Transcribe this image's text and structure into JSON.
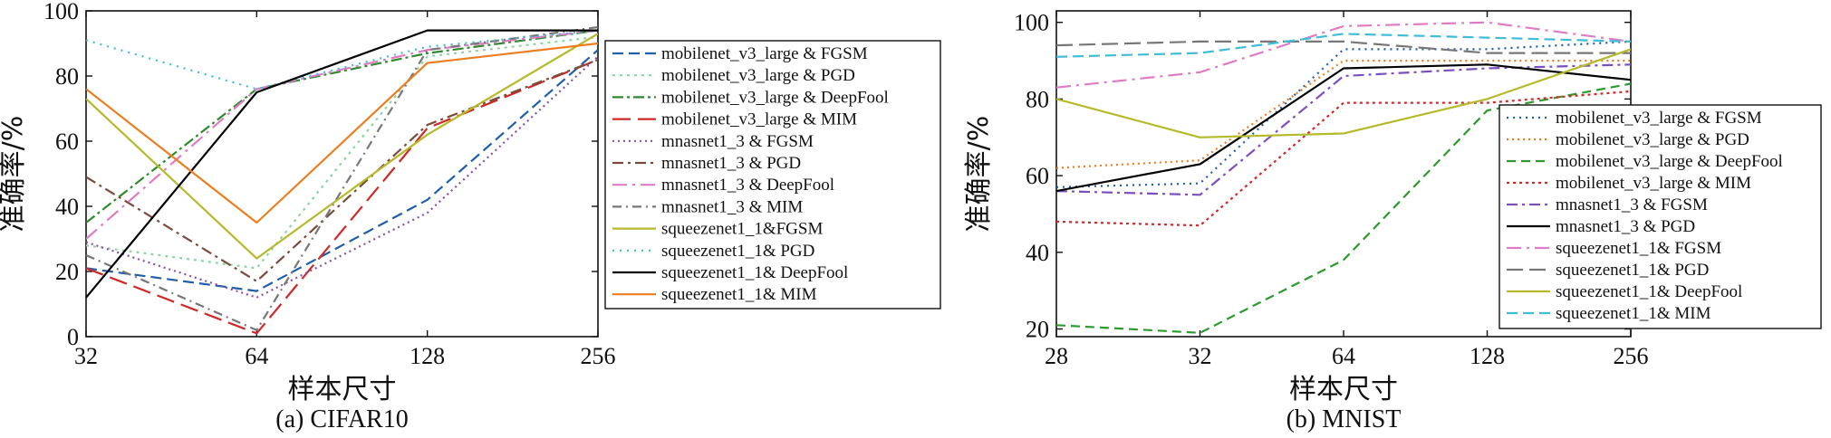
{
  "chart_data": [
    {
      "type": "line",
      "caption": "(a) CIFAR10",
      "xlabel": "样本尺寸",
      "ylabel": "准确率/%",
      "categories": [
        "32",
        "64",
        "128",
        "256"
      ],
      "yticks": [
        "0",
        "20",
        "40",
        "60",
        "80",
        "100"
      ],
      "ylim": [
        0,
        100
      ],
      "grid": false,
      "legend_position": "right",
      "series": [
        {
          "name": "mobilenet_v3_large & FGSM",
          "color": "#1f5fa8",
          "dash": "12 6",
          "values": [
            21,
            14,
            42,
            88
          ]
        },
        {
          "name": "mobilenet_v3_large & PGD",
          "color": "#8fd3a6",
          "dash": "3 5",
          "values": [
            28,
            21,
            86,
            92
          ]
        },
        {
          "name": "mobilenet_v3_large & DeepFool",
          "color": "#2d8a2d",
          "dash": "12 4 3 4",
          "values": [
            35,
            76,
            87,
            94
          ]
        },
        {
          "name": "mobilenet_v3_large & MIM",
          "color": "#d02828",
          "dash": "20 8",
          "values": [
            21,
            1,
            64,
            85
          ]
        },
        {
          "name": "mnasnet1_3 & FGSM",
          "color": "#8a4fa5",
          "dash": "2 4",
          "values": [
            29,
            12,
            38,
            86
          ]
        },
        {
          "name": "mnasnet1_3 & PGD",
          "color": "#7a4a3a",
          "dash": "12 5 3 5",
          "values": [
            49,
            17,
            65,
            85
          ]
        },
        {
          "name": "mnasnet1_3 & DeepFool",
          "color": "#e07cc4",
          "dash": "16 6 3 6",
          "values": [
            30,
            76,
            88,
            94
          ]
        },
        {
          "name": "mnasnet1_3 & MIM",
          "color": "#777777",
          "dash": "10 5 2 5",
          "values": [
            25,
            2,
            88,
            95
          ]
        },
        {
          "name": "squeezenet1_1&FGSM",
          "color": "#b5b92a",
          "dash": "",
          "values": [
            73,
            24,
            62,
            93
          ]
        },
        {
          "name": "squeezenet1_1& PGD",
          "color": "#3fbcd8",
          "dash": "2 6",
          "values": [
            91,
            76,
            89,
            94
          ]
        },
        {
          "name": "squeezenet1_1& DeepFool",
          "color": "#000000",
          "dash": "",
          "values": [
            12,
            75,
            94,
            94
          ]
        },
        {
          "name": "squeezenet1_1& MIM",
          "color": "#ee7d20",
          "dash": "",
          "values": [
            76,
            35,
            84,
            90
          ]
        }
      ]
    },
    {
      "type": "line",
      "caption": "(b) MNIST",
      "xlabel": "样本尺寸",
      "ylabel": "准确率/%",
      "categories": [
        "28",
        "32",
        "64",
        "128",
        "256"
      ],
      "yticks": [
        "20",
        "40",
        "60",
        "80",
        "100"
      ],
      "ylim": [
        18,
        103
      ],
      "grid": false,
      "legend_position": "right",
      "series": [
        {
          "name": "mobilenet_v3_large & FGSM",
          "color": "#1f5fa8",
          "dash": "2 5",
          "values": [
            57,
            58,
            93,
            93,
            95
          ]
        },
        {
          "name": "mobilenet_v3_large & PGD",
          "color": "#ee7d20",
          "dash": "2 4",
          "values": [
            62,
            64,
            90,
            90,
            90
          ]
        },
        {
          "name": "mobilenet_v3_large & DeepFool",
          "color": "#2d9a2d",
          "dash": "10 6",
          "values": [
            21,
            19,
            38,
            77,
            84
          ]
        },
        {
          "name": "mobilenet_v3_large & MIM",
          "color": "#d02828",
          "dash": "3 4",
          "values": [
            48,
            47,
            79,
            79,
            82
          ]
        },
        {
          "name": "mnasnet1_3 & FGSM",
          "color": "#7b4fc0",
          "dash": "12 5 3 5",
          "values": [
            56,
            55,
            86,
            88,
            89
          ]
        },
        {
          "name": "mnasnet1_3 & PGD",
          "color": "#000000",
          "dash": "",
          "values": [
            56,
            63,
            88,
            89,
            85
          ]
        },
        {
          "name": "squeezenet1_1& FGSM",
          "color": "#e07cc4",
          "dash": "16 6 3 6",
          "values": [
            83,
            87,
            99,
            100,
            95
          ]
        },
        {
          "name": "squeezenet1_1& PGD",
          "color": "#777777",
          "dash": "18 7",
          "values": [
            94,
            95,
            95,
            92,
            92
          ]
        },
        {
          "name": "squeezenet1_1& DeepFool",
          "color": "#b5b92a",
          "dash": "",
          "values": [
            80,
            70,
            71,
            80,
            93
          ]
        },
        {
          "name": "squeezenet1_1& MIM",
          "color": "#3fbcd8",
          "dash": "12 6",
          "values": [
            91,
            92,
            97,
            96,
            95
          ]
        }
      ]
    }
  ]
}
